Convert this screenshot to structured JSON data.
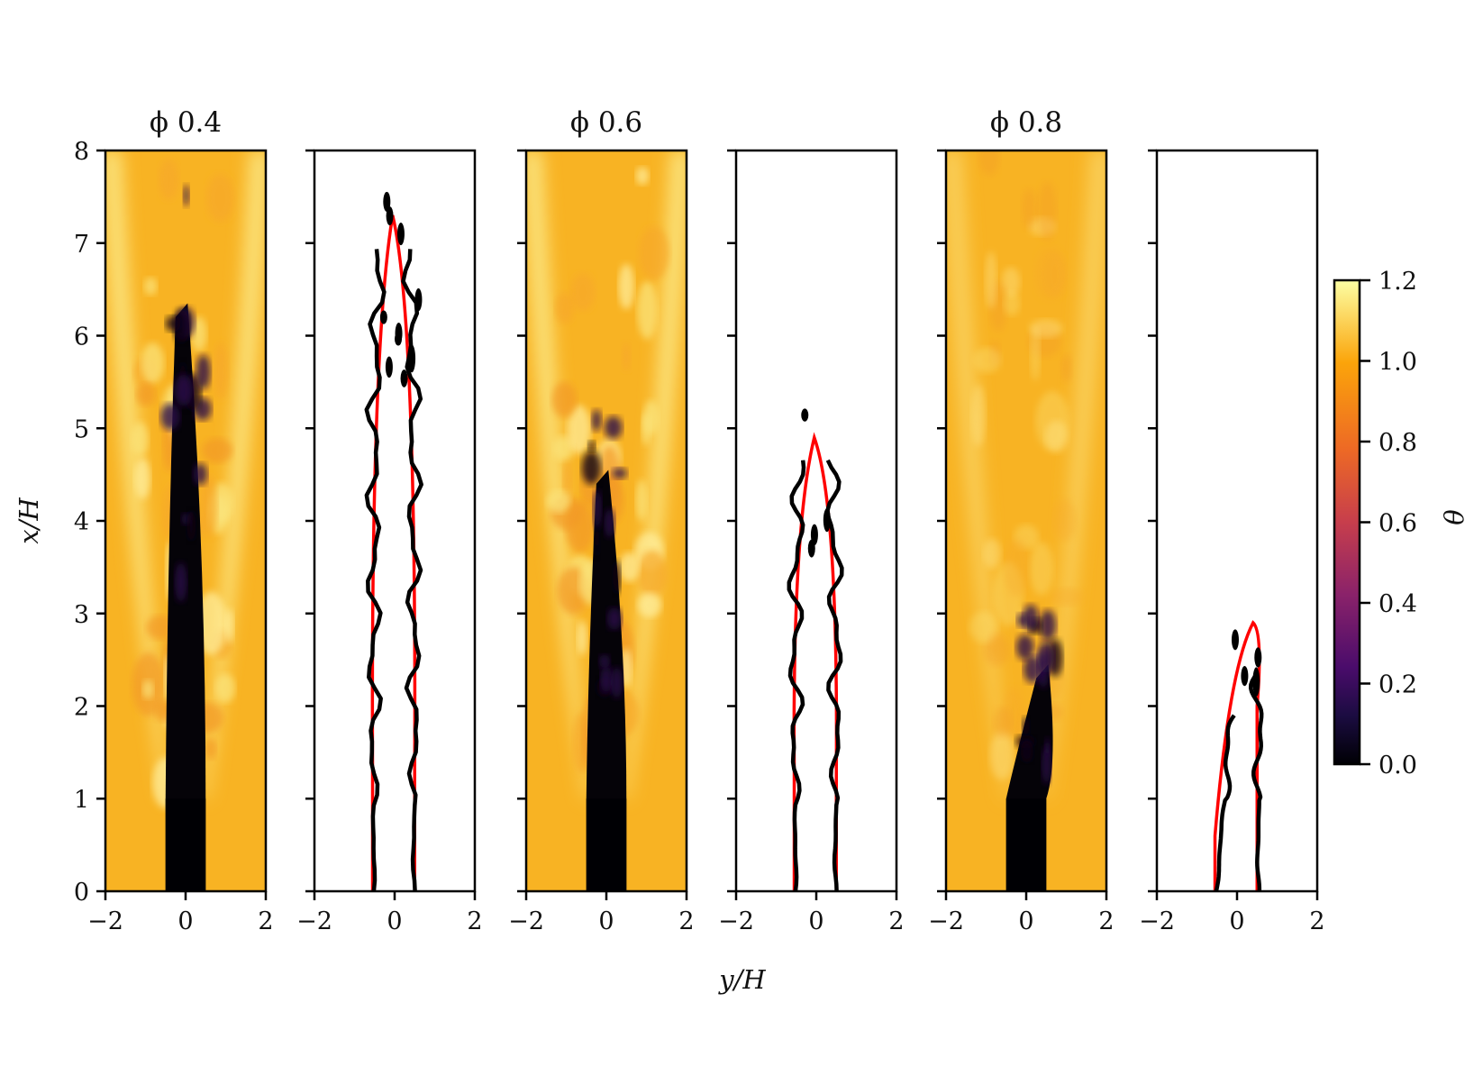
{
  "chart_data": {
    "type": "heatmap",
    "xlabel": "y/H",
    "ylabel": "x/H",
    "xlim": [
      -2,
      2
    ],
    "ylim": [
      0,
      8
    ],
    "xticks": [
      "−2",
      "0",
      "2"
    ],
    "yticks": [
      "0",
      "1",
      "2",
      "3",
      "4",
      "5",
      "6",
      "7",
      "8"
    ],
    "colorbar": {
      "label": "θ",
      "range": [
        0.0,
        1.2
      ],
      "ticks": [
        "0.0",
        "0.2",
        "0.4",
        "0.6",
        "0.8",
        "1.0",
        "1.2"
      ],
      "colormap": "inferno"
    },
    "panels": [
      {
        "title": "ϕ 0.4",
        "kind": "field",
        "flame_length": 7.3,
        "core_top": 6.2
      },
      {
        "title": "",
        "kind": "contour",
        "flame_length": 7.3,
        "contour_colors": {
          "mean": "#ff0000",
          "instant": "#000000"
        }
      },
      {
        "title": "ϕ 0.6",
        "kind": "field",
        "flame_length": 4.9,
        "core_top": 4.4
      },
      {
        "title": "",
        "kind": "contour",
        "flame_length": 4.9,
        "contour_colors": {
          "mean": "#ff0000",
          "instant": "#000000"
        }
      },
      {
        "title": "ϕ 0.8",
        "kind": "field",
        "flame_length": 2.9,
        "core_top": 2.3
      },
      {
        "title": "",
        "kind": "contour",
        "flame_length": 2.9,
        "contour_colors": {
          "mean": "#ff0000",
          "instant": "#000000"
        }
      }
    ]
  }
}
